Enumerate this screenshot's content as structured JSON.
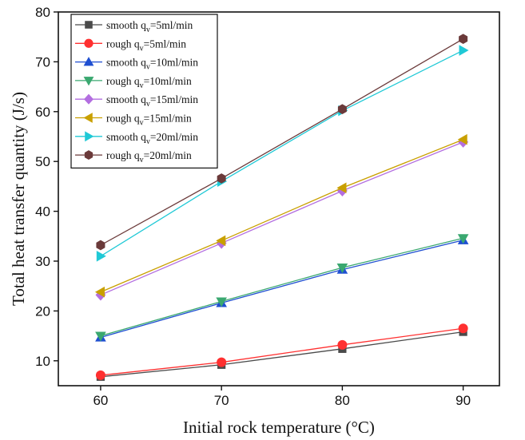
{
  "chart_data": {
    "type": "line",
    "xlabel": "Initial rock temperature (°C)",
    "ylabel": "Total heat transfer quantity (J/s)",
    "x": [
      60,
      70,
      80,
      90
    ],
    "xlim": [
      56.5,
      93
    ],
    "ylim": [
      5,
      80
    ],
    "xticks": [
      60,
      70,
      80,
      90
    ],
    "yticks": [
      10,
      20,
      30,
      40,
      50,
      60,
      70,
      80
    ],
    "grid": false,
    "legend_position": "top-left",
    "series": [
      {
        "name": "smooth qv=5ml/min",
        "legend": {
          "pre": "smooth q",
          "sub": "v",
          "post": "=5ml/min"
        },
        "marker": "square",
        "color": "#4a4a4a",
        "values": [
          6.8,
          9.2,
          12.4,
          15.8
        ]
      },
      {
        "name": "rough qv=5ml/min",
        "legend": {
          "pre": "rough q",
          "sub": "v",
          "post": "=5ml/min"
        },
        "marker": "circle",
        "color": "#ff3030",
        "values": [
          7.1,
          9.7,
          13.2,
          16.5
        ]
      },
      {
        "name": "smooth qv=10ml/min",
        "legend": {
          "pre": "smooth q",
          "sub": "v",
          "post": "=10ml/min"
        },
        "marker": "triangle-up",
        "color": "#1f4fd1",
        "values": [
          14.7,
          21.6,
          28.3,
          34.2
        ]
      },
      {
        "name": "rough qv=10ml/min",
        "legend": {
          "pre": "rough q",
          "sub": "v",
          "post": "=10ml/min"
        },
        "marker": "triangle-down",
        "color": "#3aa870",
        "values": [
          15.0,
          21.9,
          28.7,
          34.6
        ]
      },
      {
        "name": "smooth qv=15ml/min",
        "legend": {
          "pre": "smooth q",
          "sub": "v",
          "post": "=15ml/min"
        },
        "marker": "diamond",
        "color": "#b36ee0",
        "values": [
          23.2,
          33.6,
          44.1,
          53.9
        ]
      },
      {
        "name": "rough qv=15ml/min",
        "legend": {
          "pre": "rough q",
          "sub": "v",
          "post": "=15ml/min"
        },
        "marker": "triangle-left",
        "color": "#c9a000",
        "values": [
          23.8,
          34.1,
          44.7,
          54.4
        ]
      },
      {
        "name": "smooth qv=20ml/min",
        "legend": {
          "pre": "smooth q",
          "sub": "v",
          "post": "=20ml/min"
        },
        "marker": "triangle-right",
        "color": "#1fc9d6",
        "values": [
          31.0,
          46.0,
          60.2,
          72.3
        ]
      },
      {
        "name": "rough qv=20ml/min",
        "legend": {
          "pre": "rough q",
          "sub": "v",
          "post": "=20ml/min"
        },
        "marker": "hexagon",
        "color": "#6b3a3a",
        "values": [
          33.2,
          46.6,
          60.5,
          74.6
        ]
      }
    ]
  }
}
